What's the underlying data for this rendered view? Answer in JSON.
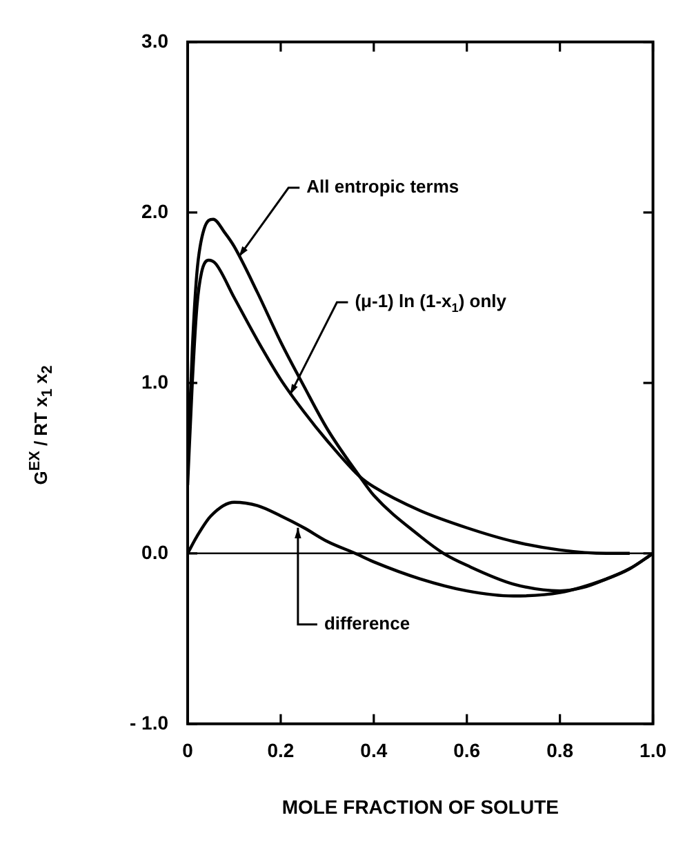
{
  "chart_data": {
    "type": "line",
    "xlabel": "MOLE FRACTION OF SOLUTE",
    "ylabel": "G$^{EX}$ / RT x$_{1}$ x$_{2}$",
    "xlim": [
      0,
      1
    ],
    "xticks": [
      {
        "value": 0,
        "label": "0"
      },
      {
        "value": 0.2,
        "label": "0.2"
      },
      {
        "value": 0.4,
        "label": "0.4"
      },
      {
        "value": 0.6,
        "label": "0.6"
      },
      {
        "value": 0.8,
        "label": "0.8"
      },
      {
        "value": 1,
        "label": "1.0"
      }
    ],
    "ylim": [
      -1,
      3
    ],
    "yticks": [
      {
        "value": -1,
        "label": "- 1.0"
      },
      {
        "value": 0,
        "label": "0.0"
      },
      {
        "value": 1,
        "label": "1.0"
      },
      {
        "value": 2,
        "label": "2.0"
      },
      {
        "value": 3,
        "label": "3.0"
      }
    ],
    "grid": false,
    "legend": false,
    "marker": "none",
    "line_style": "solid",
    "series": [
      {
        "color": "#000000",
        "x": [
          0,
          0.01,
          0.02,
          0.035,
          0.055,
          0.08,
          0.1,
          0.15,
          0.2,
          0.25,
          0.3,
          0.37,
          0.4,
          0.5,
          0.55,
          0.6,
          0.7,
          0.8,
          0.85,
          0.9,
          0.95,
          1.0
        ],
        "values": [
          0.5,
          1.2,
          1.65,
          1.9,
          1.96,
          1.88,
          1.8,
          1.53,
          1.24,
          0.98,
          0.73,
          0.45,
          0.34,
          0.1,
          0,
          -0.07,
          -0.18,
          -0.22,
          -0.2,
          -0.15,
          -0.09,
          0
        ]
      },
      {
        "color": "#000000",
        "x": [
          0,
          0.01,
          0.02,
          0.03,
          0.045,
          0.06,
          0.1,
          0.15,
          0.2,
          0.25,
          0.3,
          0.37,
          0.4,
          0.5,
          0.6,
          0.7,
          0.8,
          0.9,
          0.95
        ],
        "values": [
          0.4,
          1.0,
          1.45,
          1.65,
          1.72,
          1.7,
          1.5,
          1.25,
          1.02,
          0.83,
          0.66,
          0.45,
          0.39,
          0.25,
          0.15,
          0.07,
          0.02,
          0,
          0
        ]
      },
      {
        "color": "#000000",
        "x": [
          0,
          0.02,
          0.05,
          0.1,
          0.15,
          0.2,
          0.25,
          0.3,
          0.36,
          0.4,
          0.5,
          0.6,
          0.7,
          0.8,
          0.9,
          0.95,
          1.0
        ],
        "values": [
          0,
          0.1,
          0.22,
          0.3,
          0.28,
          0.22,
          0.15,
          0.07,
          0,
          -0.05,
          -0.15,
          -0.22,
          -0.25,
          -0.23,
          -0.15,
          -0.09,
          0
        ]
      }
    ],
    "ref_lines": [
      {
        "axis": "y",
        "value": 0,
        "color": "#000000"
      }
    ],
    "annotations": [
      {
        "text": "All entropic terms",
        "x": 0.11,
        "y": 1.74
      },
      {
        "text": "(μ-1) ln (1-x$_{1}$) only",
        "x": 0.22,
        "y": 0.93
      },
      {
        "text": "difference",
        "x": 0.237,
        "y": 0.15
      }
    ]
  }
}
